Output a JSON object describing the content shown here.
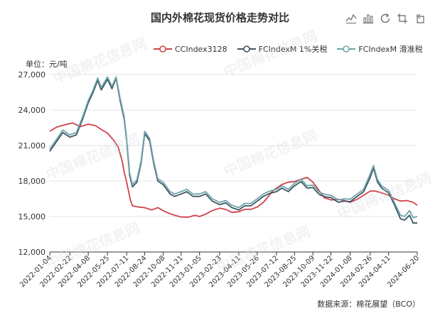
{
  "title": "国内外棉花现货价格走势对比",
  "unit_label": "单位：元/吨",
  "source_label": "数据来源：棉花展望（BCO）",
  "watermark": "中国棉花信息网",
  "toolbox": [
    "line-chart-icon",
    "bar-chart-icon",
    "restore-icon",
    "zoom-icon",
    "zoom-reset-icon"
  ],
  "chart_data": {
    "type": "line",
    "title": "国内外棉花现货价格走势对比",
    "ylabel": "单位：元/吨",
    "ylim": [
      12000,
      27000
    ],
    "yticks": [
      "12,000",
      "15,000",
      "18,000",
      "21,000",
      "24,000",
      "27,000"
    ],
    "x_range": [
      "2022-01-04",
      "2024-06-20"
    ],
    "xticks": [
      "2022-01-04",
      "2022-02-22",
      "2022-04-08",
      "2022-05-25",
      "2022-07-11",
      "2022-08-24",
      "2022-10-08",
      "2022-11-21",
      "2023-01-05",
      "2023-02-23",
      "2023-04-11",
      "2023-05-26",
      "2023-07-12",
      "2023-08-25",
      "2023-10-09",
      "2023-11-22",
      "2024-01-08",
      "2024-02-26",
      "2024-04-11",
      "2024-06-20"
    ],
    "grid": "horizontal",
    "legend_position": "top",
    "series": [
      {
        "name": "CCIndex3128",
        "color": "#d0434a",
        "points": [
          [
            "2022-01-04",
            22200
          ],
          [
            "2022-01-20",
            22550
          ],
          [
            "2022-02-10",
            22750
          ],
          [
            "2022-03-01",
            22900
          ],
          [
            "2022-03-20",
            22600
          ],
          [
            "2022-04-08",
            22800
          ],
          [
            "2022-04-25",
            22700
          ],
          [
            "2022-05-10",
            22350
          ],
          [
            "2022-05-25",
            22050
          ],
          [
            "2022-06-10",
            21400
          ],
          [
            "2022-06-20",
            20900
          ],
          [
            "2022-06-30",
            19700
          ],
          [
            "2022-07-05",
            18700
          ],
          [
            "2022-07-11",
            17900
          ],
          [
            "2022-07-20",
            16400
          ],
          [
            "2022-07-25",
            15900
          ],
          [
            "2022-08-10",
            15800
          ],
          [
            "2022-08-24",
            15750
          ],
          [
            "2022-09-10",
            15550
          ],
          [
            "2022-09-25",
            15750
          ],
          [
            "2022-10-08",
            15500
          ],
          [
            "2022-10-20",
            15300
          ],
          [
            "2022-11-05",
            15100
          ],
          [
            "2022-11-21",
            14950
          ],
          [
            "2022-12-10",
            14950
          ],
          [
            "2022-12-25",
            15100
          ],
          [
            "2023-01-05",
            15000
          ],
          [
            "2023-01-20",
            15200
          ],
          [
            "2023-02-05",
            15500
          ],
          [
            "2023-02-23",
            15700
          ],
          [
            "2023-03-10",
            15600
          ],
          [
            "2023-03-25",
            15350
          ],
          [
            "2023-04-11",
            15400
          ],
          [
            "2023-04-25",
            15600
          ],
          [
            "2023-05-10",
            15600
          ],
          [
            "2023-05-26",
            15800
          ],
          [
            "2023-06-10",
            16200
          ],
          [
            "2023-06-20",
            16600
          ],
          [
            "2023-07-01",
            17100
          ],
          [
            "2023-07-12",
            17400
          ],
          [
            "2023-07-25",
            17700
          ],
          [
            "2023-08-10",
            17900
          ],
          [
            "2023-08-25",
            17950
          ],
          [
            "2023-09-10",
            18150
          ],
          [
            "2023-09-25",
            18300
          ],
          [
            "2023-10-09",
            17900
          ],
          [
            "2023-10-20",
            17400
          ],
          [
            "2023-11-05",
            16600
          ],
          [
            "2023-11-22",
            16400
          ],
          [
            "2023-12-10",
            16450
          ],
          [
            "2023-12-25",
            16350
          ],
          [
            "2024-01-08",
            16200
          ],
          [
            "2024-01-25",
            16450
          ],
          [
            "2024-02-10",
            16800
          ],
          [
            "2024-02-26",
            17150
          ],
          [
            "2024-03-10",
            17150
          ],
          [
            "2024-03-25",
            17000
          ],
          [
            "2024-04-11",
            16800
          ],
          [
            "2024-04-25",
            16500
          ],
          [
            "2024-05-10",
            16300
          ],
          [
            "2024-05-25",
            16350
          ],
          [
            "2024-06-10",
            16200
          ],
          [
            "2024-06-20",
            15950
          ]
        ]
      },
      {
        "name": "FCIndexM 1%关税",
        "color": "#3d5563",
        "points": [
          [
            "2022-01-04",
            20500
          ],
          [
            "2022-01-20",
            21300
          ],
          [
            "2022-02-05",
            22100
          ],
          [
            "2022-02-22",
            21700
          ],
          [
            "2022-03-10",
            21900
          ],
          [
            "2022-03-25",
            23200
          ],
          [
            "2022-04-08",
            24600
          ],
          [
            "2022-04-20",
            25500
          ],
          [
            "2022-05-01",
            26500
          ],
          [
            "2022-05-10",
            25700
          ],
          [
            "2022-05-25",
            26600
          ],
          [
            "2022-06-05",
            25800
          ],
          [
            "2022-06-15",
            26700
          ],
          [
            "2022-06-25",
            24800
          ],
          [
            "2022-07-05",
            23200
          ],
          [
            "2022-07-11",
            21400
          ],
          [
            "2022-07-18",
            18500
          ],
          [
            "2022-07-25",
            17500
          ],
          [
            "2022-08-05",
            17900
          ],
          [
            "2022-08-15",
            19500
          ],
          [
            "2022-08-24",
            22000
          ],
          [
            "2022-09-05",
            21400
          ],
          [
            "2022-09-15",
            19500
          ],
          [
            "2022-09-25",
            18000
          ],
          [
            "2022-10-08",
            17700
          ],
          [
            "2022-10-25",
            16900
          ],
          [
            "2022-11-05",
            16700
          ],
          [
            "2022-11-21",
            16900
          ],
          [
            "2022-12-05",
            17100
          ],
          [
            "2022-12-20",
            16700
          ],
          [
            "2023-01-05",
            16700
          ],
          [
            "2023-01-20",
            16900
          ],
          [
            "2023-02-05",
            16300
          ],
          [
            "2023-02-23",
            16000
          ],
          [
            "2023-03-10",
            16150
          ],
          [
            "2023-03-25",
            15750
          ],
          [
            "2023-04-11",
            15550
          ],
          [
            "2023-04-25",
            15900
          ],
          [
            "2023-05-10",
            15900
          ],
          [
            "2023-05-26",
            16300
          ],
          [
            "2023-06-10",
            16700
          ],
          [
            "2023-06-25",
            16950
          ],
          [
            "2023-07-12",
            17100
          ],
          [
            "2023-07-25",
            17400
          ],
          [
            "2023-08-10",
            17100
          ],
          [
            "2023-08-25",
            17600
          ],
          [
            "2023-09-10",
            17950
          ],
          [
            "2023-09-25",
            17400
          ],
          [
            "2023-10-09",
            17450
          ],
          [
            "2023-10-25",
            16850
          ],
          [
            "2023-11-10",
            16650
          ],
          [
            "2023-11-22",
            16600
          ],
          [
            "2023-12-10",
            16200
          ],
          [
            "2023-12-25",
            16300
          ],
          [
            "2024-01-08",
            16250
          ],
          [
            "2024-01-25",
            16700
          ],
          [
            "2024-02-10",
            17100
          ],
          [
            "2024-02-26",
            18300
          ],
          [
            "2024-03-05",
            19100
          ],
          [
            "2024-03-15",
            17900
          ],
          [
            "2024-03-25",
            17400
          ],
          [
            "2024-04-11",
            17000
          ],
          [
            "2024-04-25",
            16000
          ],
          [
            "2024-05-10",
            14800
          ],
          [
            "2024-05-20",
            14700
          ],
          [
            "2024-06-01",
            15100
          ],
          [
            "2024-06-10",
            14450
          ],
          [
            "2024-06-20",
            14450
          ]
        ]
      },
      {
        "name": "FCIndexM 滑准税",
        "color": "#6ea5ab",
        "points": [
          [
            "2022-01-04",
            20700
          ],
          [
            "2022-01-20",
            21500
          ],
          [
            "2022-02-05",
            22300
          ],
          [
            "2022-02-22",
            21900
          ],
          [
            "2022-03-10",
            22100
          ],
          [
            "2022-03-25",
            23400
          ],
          [
            "2022-04-08",
            24800
          ],
          [
            "2022-04-20",
            25700
          ],
          [
            "2022-05-01",
            26700
          ],
          [
            "2022-05-10",
            25900
          ],
          [
            "2022-05-25",
            26800
          ],
          [
            "2022-06-05",
            26000
          ],
          [
            "2022-06-15",
            26800
          ],
          [
            "2022-06-25",
            25000
          ],
          [
            "2022-07-05",
            23400
          ],
          [
            "2022-07-11",
            21600
          ],
          [
            "2022-07-18",
            18700
          ],
          [
            "2022-07-25",
            17700
          ],
          [
            "2022-08-05",
            18100
          ],
          [
            "2022-08-15",
            19700
          ],
          [
            "2022-08-24",
            22200
          ],
          [
            "2022-09-05",
            21600
          ],
          [
            "2022-09-15",
            19700
          ],
          [
            "2022-09-25",
            18200
          ],
          [
            "2022-10-08",
            17900
          ],
          [
            "2022-10-25",
            17100
          ],
          [
            "2022-11-05",
            16900
          ],
          [
            "2022-11-21",
            17100
          ],
          [
            "2022-12-05",
            17300
          ],
          [
            "2022-12-20",
            16900
          ],
          [
            "2023-01-05",
            16900
          ],
          [
            "2023-01-20",
            17100
          ],
          [
            "2023-02-05",
            16500
          ],
          [
            "2023-02-23",
            16200
          ],
          [
            "2023-03-10",
            16350
          ],
          [
            "2023-03-25",
            15950
          ],
          [
            "2023-04-11",
            15750
          ],
          [
            "2023-04-25",
            16100
          ],
          [
            "2023-05-10",
            16100
          ],
          [
            "2023-05-26",
            16500
          ],
          [
            "2023-06-10",
            16900
          ],
          [
            "2023-06-25",
            17150
          ],
          [
            "2023-07-12",
            17300
          ],
          [
            "2023-07-25",
            17600
          ],
          [
            "2023-08-10",
            17300
          ],
          [
            "2023-08-25",
            17800
          ],
          [
            "2023-09-10",
            18150
          ],
          [
            "2023-09-25",
            17600
          ],
          [
            "2023-10-09",
            17650
          ],
          [
            "2023-10-25",
            17050
          ],
          [
            "2023-11-10",
            16850
          ],
          [
            "2023-11-22",
            16800
          ],
          [
            "2023-12-10",
            16400
          ],
          [
            "2023-12-25",
            16500
          ],
          [
            "2024-01-08",
            16450
          ],
          [
            "2024-01-25",
            16900
          ],
          [
            "2024-02-10",
            17300
          ],
          [
            "2024-02-26",
            18600
          ],
          [
            "2024-03-05",
            19300
          ],
          [
            "2024-03-15",
            18100
          ],
          [
            "2024-03-25",
            17600
          ],
          [
            "2024-04-11",
            17200
          ],
          [
            "2024-04-25",
            16200
          ],
          [
            "2024-05-10",
            15100
          ],
          [
            "2024-05-20",
            15000
          ],
          [
            "2024-06-01",
            15500
          ],
          [
            "2024-06-10",
            14900
          ],
          [
            "2024-06-20",
            15000
          ]
        ]
      }
    ]
  }
}
